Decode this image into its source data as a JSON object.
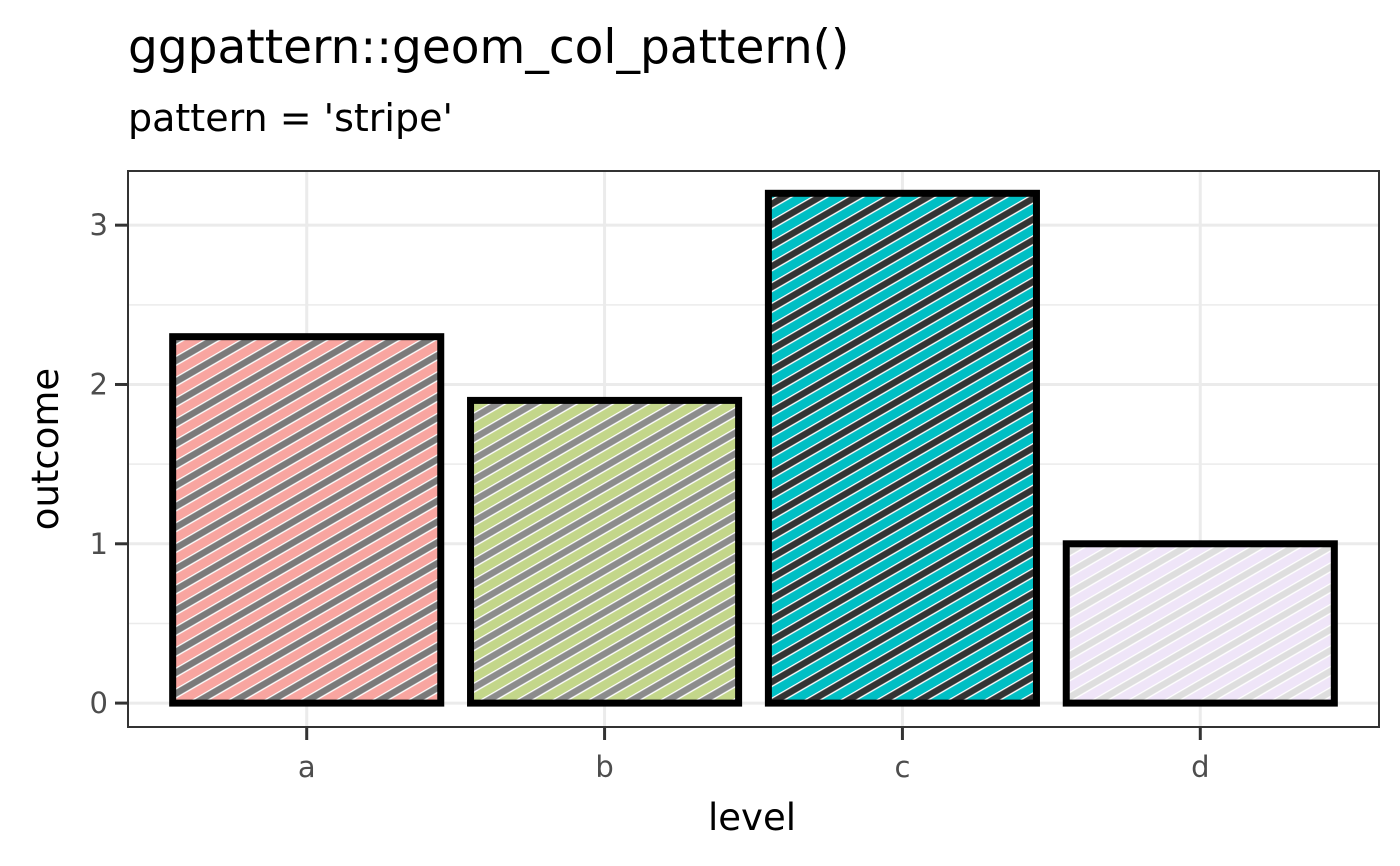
{
  "chart_data": {
    "type": "bar",
    "title": "ggpattern::geom_col_pattern()",
    "subtitle": "pattern = 'stripe'",
    "xlabel": "level",
    "ylabel": "outcome",
    "categories": [
      "a",
      "b",
      "c",
      "d"
    ],
    "values": [
      2.3,
      1.9,
      3.2,
      1.0
    ],
    "fills": [
      "#F8A5A0",
      "#C3D68A",
      "#00BFC4",
      "#EFE5F8"
    ],
    "stripe_colors": [
      "#7a7a7a",
      "#8c8c8c",
      "#333333",
      "#dedede"
    ],
    "ylim": [
      -0.15,
      3.34
    ],
    "yticks": [
      0,
      1,
      2,
      3
    ],
    "ytick_labels": [
      "0",
      "1",
      "2",
      "3"
    ],
    "grid": true,
    "pattern": "stripe"
  }
}
